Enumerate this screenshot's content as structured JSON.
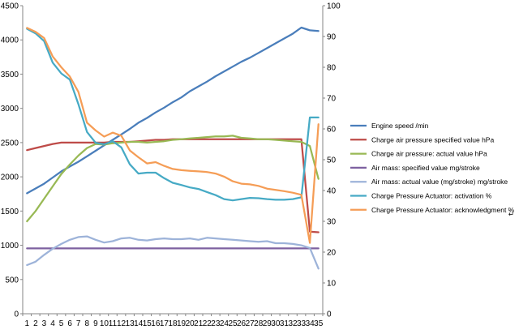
{
  "chart_data": {
    "type": "line",
    "title": "",
    "x": [
      1,
      2,
      3,
      4,
      5,
      6,
      7,
      8,
      9,
      10,
      11,
      12,
      13,
      14,
      15,
      16,
      17,
      18,
      19,
      20,
      21,
      22,
      23,
      24,
      25,
      26,
      27,
      28,
      29,
      30,
      31,
      32,
      33,
      34,
      35
    ],
    "x_tick_labels": [
      "1",
      "2",
      "3",
      "4",
      "5",
      "6",
      "7",
      "8",
      "9",
      "10",
      "11",
      "12",
      "13",
      "14",
      "15",
      "16",
      "17",
      "18",
      "19",
      "20",
      "21",
      "22",
      "23",
      "24",
      "25",
      "26",
      "27",
      "28",
      "29",
      "30",
      "31",
      "32",
      "33",
      "34",
      "35"
    ],
    "ylim_left": [
      0,
      4500
    ],
    "y_ticks_left": [
      0,
      500,
      1000,
      1500,
      2000,
      2500,
      3000,
      3500,
      4000,
      4500
    ],
    "ylim_right": [
      0,
      100
    ],
    "y_ticks_right": [
      0,
      10,
      20,
      30,
      40,
      50,
      60,
      70,
      80,
      90,
      100
    ],
    "grid": false,
    "legend_position": "right",
    "series": [
      {
        "name": "Engine speed  /min",
        "axis": "left",
        "color": "#4a7ebb",
        "values": [
          1760,
          1830,
          1900,
          1990,
          2080,
          2150,
          2220,
          2300,
          2380,
          2460,
          2540,
          2620,
          2700,
          2790,
          2860,
          2940,
          3010,
          3090,
          3160,
          3250,
          3320,
          3390,
          3470,
          3540,
          3610,
          3680,
          3740,
          3810,
          3880,
          3950,
          4020,
          4090,
          4180,
          4140,
          4130
        ]
      },
      {
        "name": "Charge air pressure specified value  hPa",
        "axis": "left",
        "color": "#be4b48",
        "values": [
          2390,
          2420,
          2450,
          2480,
          2500,
          2500,
          2500,
          2500,
          2500,
          2500,
          2510,
          2510,
          2510,
          2520,
          2530,
          2540,
          2540,
          2550,
          2550,
          2550,
          2550,
          2550,
          2550,
          2550,
          2550,
          2550,
          2550,
          2550,
          2550,
          2550,
          2550,
          2550,
          2550,
          1200,
          1190
        ]
      },
      {
        "name": "Charge air pressure: actual value  hPa",
        "axis": "left",
        "color": "#98b954",
        "values": [
          1350,
          1500,
          1680,
          1860,
          2040,
          2180,
          2310,
          2420,
          2480,
          2470,
          2490,
          2500,
          2510,
          2510,
          2500,
          2510,
          2520,
          2540,
          2550,
          2560,
          2570,
          2580,
          2590,
          2590,
          2600,
          2570,
          2560,
          2550,
          2550,
          2540,
          2530,
          2520,
          2510,
          2450,
          1970
        ]
      },
      {
        "name": "Air mass: specified value  mg/stroke",
        "axis": "left",
        "color": "#7d60a0",
        "values": [
          955,
          955,
          955,
          955,
          955,
          955,
          955,
          955,
          955,
          955,
          955,
          955,
          955,
          955,
          955,
          955,
          955,
          955,
          955,
          955,
          955,
          955,
          955,
          955,
          955,
          955,
          955,
          955,
          955,
          955,
          955,
          955,
          955,
          955,
          955
        ]
      },
      {
        "name": "Air mass: actual value (mg/stroke)  mg/stroke",
        "axis": "left",
        "color": "#9db3d9",
        "values": [
          710,
          760,
          860,
          950,
          1020,
          1080,
          1120,
          1130,
          1080,
          1040,
          1060,
          1100,
          1110,
          1080,
          1070,
          1090,
          1100,
          1090,
          1090,
          1100,
          1080,
          1110,
          1100,
          1090,
          1080,
          1070,
          1060,
          1050,
          1060,
          1030,
          1030,
          1020,
          1000,
          960,
          660
        ]
      },
      {
        "name": "Charge Pressure Actuator: activation  %",
        "axis": "right",
        "color": "#46aac5",
        "values": [
          92.5,
          91,
          88.5,
          81.5,
          78,
          76,
          68,
          59,
          55.5,
          55,
          56,
          54,
          48.5,
          45.5,
          45.8,
          45.8,
          44,
          42.5,
          41.8,
          41,
          40.5,
          39.5,
          38.5,
          37.2,
          36.8,
          37.2,
          37.6,
          37.5,
          37.2,
          37,
          37,
          37.2,
          37.8,
          63.7,
          63.7
        ]
      },
      {
        "name": "Charge Pressure Actuator: acknowledgment  %",
        "axis": "right",
        "color": "#f59d56",
        "values": [
          92.8,
          91.5,
          89.5,
          83.5,
          80,
          77,
          72,
          62,
          59.5,
          57.5,
          58.8,
          57.8,
          53,
          50.8,
          48.8,
          49.2,
          48,
          47,
          46.6,
          46.4,
          46.2,
          46,
          45.5,
          44.5,
          43,
          42.2,
          42,
          41.5,
          40.6,
          40.2,
          39.8,
          39.3,
          38.6,
          23,
          61.5
        ]
      }
    ],
    "legend_extra_marker": "↵"
  }
}
